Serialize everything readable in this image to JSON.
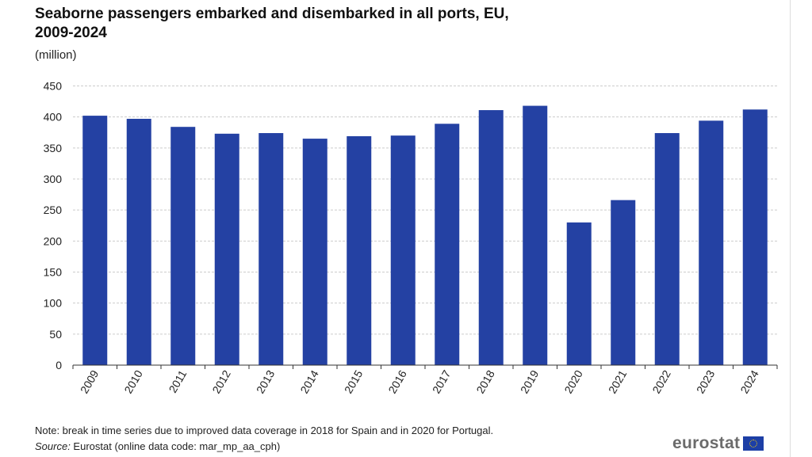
{
  "chart_data": {
    "type": "bar",
    "title": "Seaborne passengers embarked and disembarked in all ports, EU, 2009-2024",
    "title_lines": [
      "Seaborne passengers embarked and disembarked in all ports, EU,",
      "2009-2024"
    ],
    "subtitle": "(million)",
    "xlabel": "",
    "ylabel": "",
    "categories": [
      "2009",
      "2010",
      "2011",
      "2012",
      "2013",
      "2014",
      "2015",
      "2016",
      "2017",
      "2018",
      "2019",
      "2020",
      "2021",
      "2022",
      "2023",
      "2024"
    ],
    "values": [
      402,
      397,
      384,
      373,
      374,
      365,
      369,
      370,
      389,
      411,
      418,
      230,
      266,
      374,
      394,
      412
    ],
    "ylim": [
      0,
      450
    ],
    "yticks": [
      0,
      50,
      100,
      150,
      200,
      250,
      300,
      350,
      400,
      450
    ],
    "grid": true,
    "bar_color": "#2441a3",
    "grid_color": "#cccccc"
  },
  "footer": {
    "note": "Note: break in time series due to improved data coverage in 2018 for Spain and in 2020 for Portugal.",
    "source_label": "Source:",
    "source_text": " Eurostat (online data code: mar_mp_aa_cph)",
    "logo": "eurostat"
  }
}
